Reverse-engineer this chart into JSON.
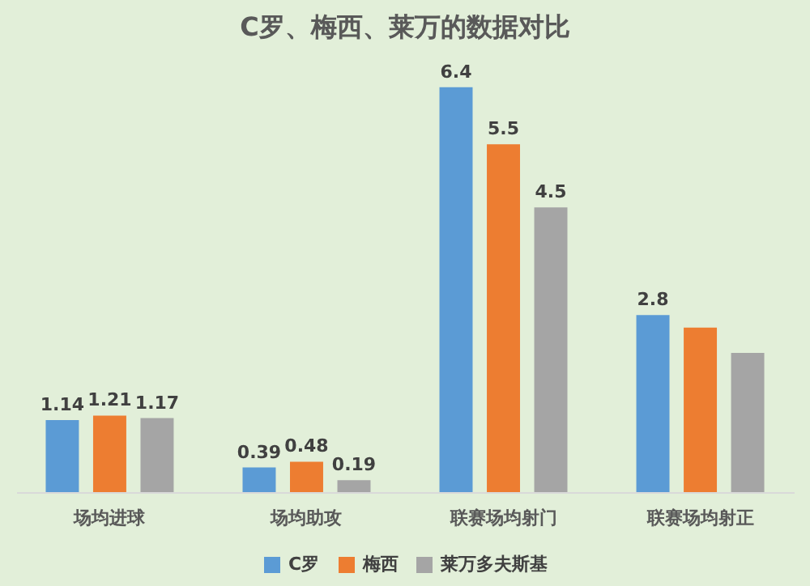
{
  "chart_data": {
    "type": "bar",
    "title": "C罗、梅西、莱万的数据对比",
    "categories": [
      "场均进球",
      "场均助攻",
      "联赛场均射门",
      "联赛场均射正"
    ],
    "series": [
      {
        "name": "C罗",
        "color": "#5b9bd5",
        "values": [
          1.14,
          0.39,
          6.4,
          2.8
        ],
        "value_labels": [
          "1.14",
          "0.39",
          "6.4",
          "2.8"
        ]
      },
      {
        "name": "梅西",
        "color": "#ed7d31",
        "values": [
          1.21,
          0.48,
          5.5,
          2.6
        ],
        "value_labels": [
          "1.21",
          "0.48",
          "5.5",
          null
        ]
      },
      {
        "name": "莱万多夫斯基",
        "color": "#a5a5a5",
        "values": [
          1.17,
          0.19,
          4.5,
          2.2
        ],
        "value_labels": [
          "1.17",
          "0.19",
          "4.5",
          null
        ]
      }
    ],
    "legend": "bottom",
    "grid": false
  }
}
